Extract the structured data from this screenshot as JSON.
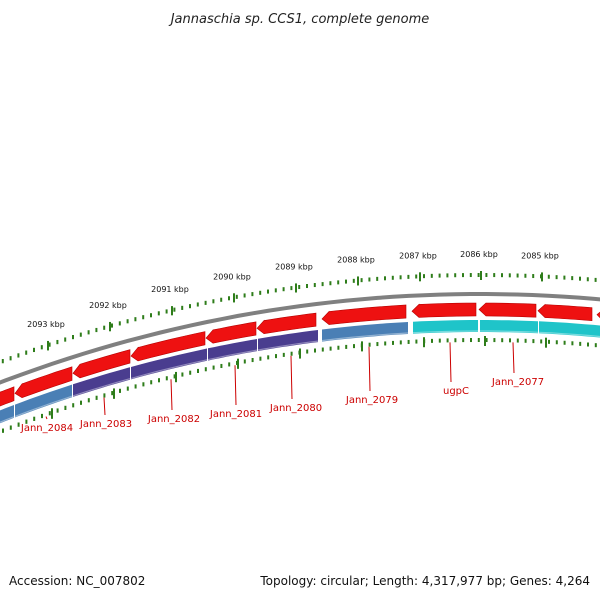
{
  "title": "Jannaschia sp. CCS1, complete genome",
  "colors": {
    "forward_gene": "#ee1111",
    "backbone": "#808080",
    "tick": "#2e7d1a",
    "label": "#cc0000"
  },
  "ticks": [
    {
      "label": "2093 kbp"
    },
    {
      "label": "2092 kbp"
    },
    {
      "label": "2091 kbp"
    },
    {
      "label": "2090 kbp"
    },
    {
      "label": "2089 kbp"
    },
    {
      "label": "2088 kbp"
    },
    {
      "label": "2087 kbp"
    },
    {
      "label": "2086 kbp"
    },
    {
      "label": "2085 kbp"
    }
  ],
  "genes": [
    {
      "name": "Jann_2084",
      "color": "#4a7fb5"
    },
    {
      "name": "Jann_2083",
      "color": "#4a3d8f"
    },
    {
      "name": "Jann_2082",
      "color": "#4a3d8f"
    },
    {
      "name": "Jann_2081",
      "color": "#4a3d8f"
    },
    {
      "name": "Jann_2080",
      "color": "#4a3d8f"
    },
    {
      "name": "Jann_2079",
      "color": "#4a7fb5"
    },
    {
      "name": "ugpC",
      "color": "#1fc4c9"
    },
    {
      "name": "Jann_2077",
      "color": "#1fc4c9"
    }
  ],
  "footer": {
    "accession": "Accession: NC_007802",
    "stats": "Topology: circular; Length: 4,317,977 bp; Genes: 4,264"
  }
}
